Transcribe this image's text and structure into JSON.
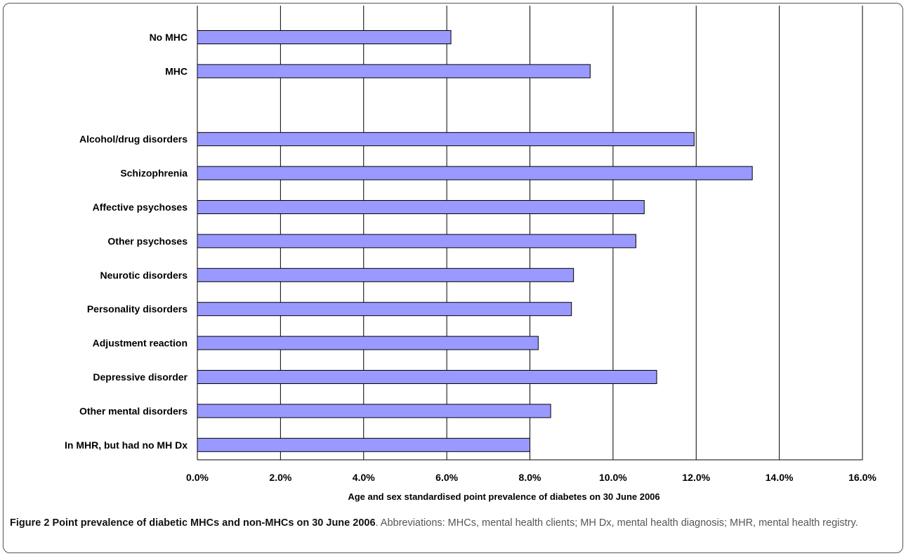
{
  "caption": {
    "figure_number": "Figure 2",
    "title": "Point prevalence of diabetic MHCs and non-MHCs on 30 June 2006",
    "text": ". Abbreviations: MHCs, mental health clients; MH Dx, mental health diagnosis; MHR, mental health registry."
  },
  "colors": {
    "bar_fill": "#9999ff",
    "bar_stroke": "#000000",
    "grid": "#000000"
  },
  "chart_data": {
    "type": "bar",
    "orientation": "horizontal",
    "categories": [
      "No MHC",
      "MHC",
      "",
      "Alcohol/drug disorders",
      "Schizophrenia",
      "Affective psychoses",
      "Other psychoses",
      "Neurotic disorders",
      "Personality disorders",
      "Adjustment reaction",
      "Depressive disorder",
      "Other mental disorders",
      "In MHR, but had no MH Dx"
    ],
    "values": [
      6.1,
      9.45,
      null,
      11.95,
      13.35,
      10.75,
      10.55,
      9.05,
      9.0,
      8.2,
      11.05,
      8.5,
      8.0
    ],
    "xlabel": "Age and sex standardised point prevalence of diabetes on 30 June 2006",
    "ylabel": "",
    "xlim": [
      0,
      16
    ],
    "xticks": [
      "0.0%",
      "2.0%",
      "4.0%",
      "6.0%",
      "8.0%",
      "10.0%",
      "12.0%",
      "14.0%",
      "16.0%"
    ],
    "grid": "vertical"
  }
}
